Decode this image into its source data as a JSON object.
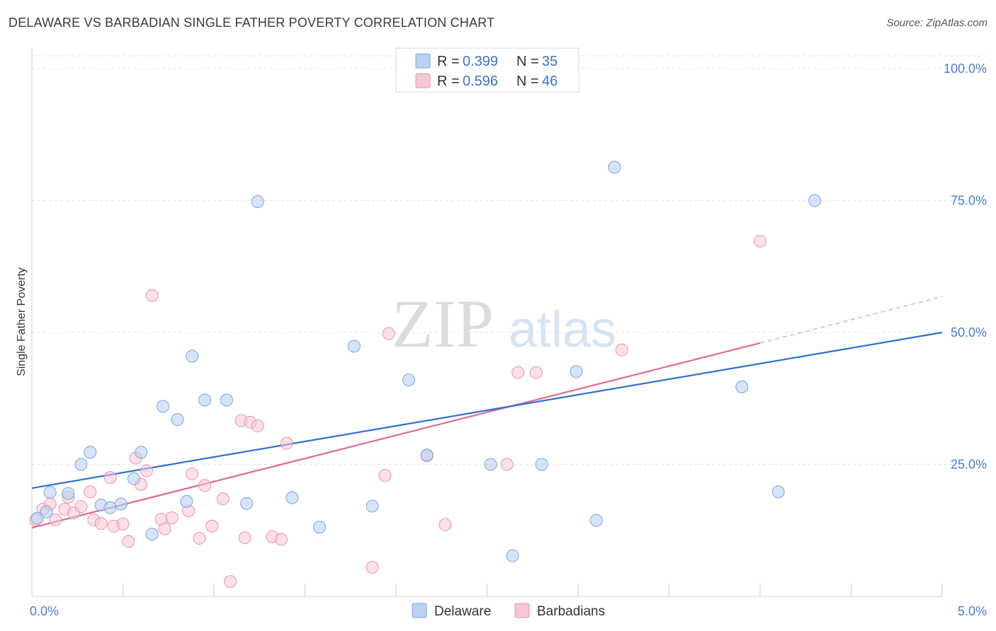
{
  "header": {
    "title": "DELAWARE VS BARBADIAN SINGLE FATHER POVERTY CORRELATION CHART",
    "source": "Source: ZipAtlas.com"
  },
  "watermark": {
    "zip": "ZIP",
    "atlas": "atlas"
  },
  "legend_top": {
    "rows": [
      {
        "r_label": "R = ",
        "r_value": "0.399",
        "n_label": "N = ",
        "n_value": "35"
      },
      {
        "r_label": "R = ",
        "r_value": "0.596",
        "n_label": "N = ",
        "n_value": "46"
      }
    ]
  },
  "colors": {
    "delaware_fill": "#b9d2f3",
    "delaware_stroke": "#7aa6e0",
    "delaware_line": "#2f6fce",
    "barbadian_fill": "#f8c6d6",
    "barbadian_stroke": "#ea93b0",
    "barbadian_line": "#e06a97",
    "tick_color": "#4a7fd0"
  },
  "chart_data": {
    "type": "scatter",
    "title": "DELAWARE VS BARBADIAN SINGLE FATHER POVERTY CORRELATION CHART",
    "xlabel": "",
    "ylabel": "Single Father Poverty",
    "xlim": [
      0.0,
      5.0
    ],
    "ylim": [
      0.0,
      100.0
    ],
    "x_tick_labels": [
      "0.0%",
      "5.0%"
    ],
    "y_tick_labels": [
      "25.0%",
      "50.0%",
      "75.0%",
      "100.0%"
    ],
    "y_ticks": [
      25,
      50,
      75,
      100
    ],
    "grid": true,
    "legend_position": "top-center",
    "series": [
      {
        "name": "Delaware",
        "r": 0.399,
        "n": 35,
        "trend": {
          "x": [
            0.0,
            5.0
          ],
          "y": [
            20.5,
            50.0
          ]
        },
        "points": [
          [
            0.03,
            14.8
          ],
          [
            0.08,
            16.0
          ],
          [
            0.2,
            19.5
          ],
          [
            0.27,
            25.0
          ],
          [
            0.32,
            27.3
          ],
          [
            0.38,
            17.3
          ],
          [
            0.43,
            16.8
          ],
          [
            0.49,
            17.5
          ],
          [
            0.56,
            22.3
          ],
          [
            0.6,
            27.3
          ],
          [
            0.66,
            11.8
          ],
          [
            0.72,
            36.0
          ],
          [
            0.8,
            33.5
          ],
          [
            0.85,
            18.0
          ],
          [
            0.88,
            45.5
          ],
          [
            0.95,
            37.2
          ],
          [
            1.07,
            37.2
          ],
          [
            1.18,
            17.6
          ],
          [
            1.24,
            74.8
          ],
          [
            1.43,
            18.7
          ],
          [
            1.58,
            13.1
          ],
          [
            1.77,
            47.4
          ],
          [
            1.87,
            17.1
          ],
          [
            2.07,
            41.0
          ],
          [
            2.17,
            26.8
          ],
          [
            2.52,
            25.0
          ],
          [
            2.64,
            7.7
          ],
          [
            2.8,
            25.0
          ],
          [
            2.99,
            42.6
          ],
          [
            3.1,
            14.4
          ],
          [
            3.2,
            81.3
          ],
          [
            3.9,
            39.7
          ],
          [
            4.1,
            19.8
          ],
          [
            4.3,
            75.0
          ],
          [
            0.1,
            19.7
          ]
        ]
      },
      {
        "name": "Barbadians",
        "r": 0.596,
        "n": 46,
        "trend": {
          "x": [
            0.0,
            4.0
          ],
          "y": [
            13.0,
            48.0
          ]
        },
        "trend_dashed": {
          "x": [
            4.0,
            5.0
          ],
          "y": [
            48.0,
            56.8
          ]
        },
        "points": [
          [
            0.02,
            14.5
          ],
          [
            0.06,
            16.5
          ],
          [
            0.1,
            17.5
          ],
          [
            0.13,
            14.5
          ],
          [
            0.18,
            16.5
          ],
          [
            0.2,
            18.8
          ],
          [
            0.23,
            15.8
          ],
          [
            0.27,
            17.0
          ],
          [
            0.32,
            19.8
          ],
          [
            0.34,
            14.5
          ],
          [
            0.38,
            13.8
          ],
          [
            0.43,
            22.5
          ],
          [
            0.45,
            13.3
          ],
          [
            0.5,
            13.7
          ],
          [
            0.53,
            10.4
          ],
          [
            0.57,
            26.2
          ],
          [
            0.6,
            21.2
          ],
          [
            0.63,
            23.8
          ],
          [
            0.66,
            57.0
          ],
          [
            0.71,
            14.6
          ],
          [
            0.73,
            12.8
          ],
          [
            0.77,
            14.9
          ],
          [
            0.86,
            16.2
          ],
          [
            0.88,
            23.2
          ],
          [
            0.92,
            11.0
          ],
          [
            0.95,
            21.0
          ],
          [
            0.99,
            13.3
          ],
          [
            1.05,
            18.5
          ],
          [
            1.09,
            2.8
          ],
          [
            1.15,
            33.3
          ],
          [
            1.17,
            11.1
          ],
          [
            1.2,
            33.0
          ],
          [
            1.24,
            32.3
          ],
          [
            1.32,
            11.3
          ],
          [
            1.37,
            10.8
          ],
          [
            1.4,
            29.0
          ],
          [
            1.87,
            5.5
          ],
          [
            1.94,
            22.9
          ],
          [
            1.96,
            49.8
          ],
          [
            2.17,
            26.6
          ],
          [
            2.27,
            13.6
          ],
          [
            2.61,
            25.0
          ],
          [
            2.67,
            42.4
          ],
          [
            2.77,
            42.4
          ],
          [
            3.24,
            46.7
          ],
          [
            4.0,
            67.3
          ]
        ]
      }
    ]
  },
  "legend_bottom": {
    "items": [
      "Delaware",
      "Barbadians"
    ]
  }
}
